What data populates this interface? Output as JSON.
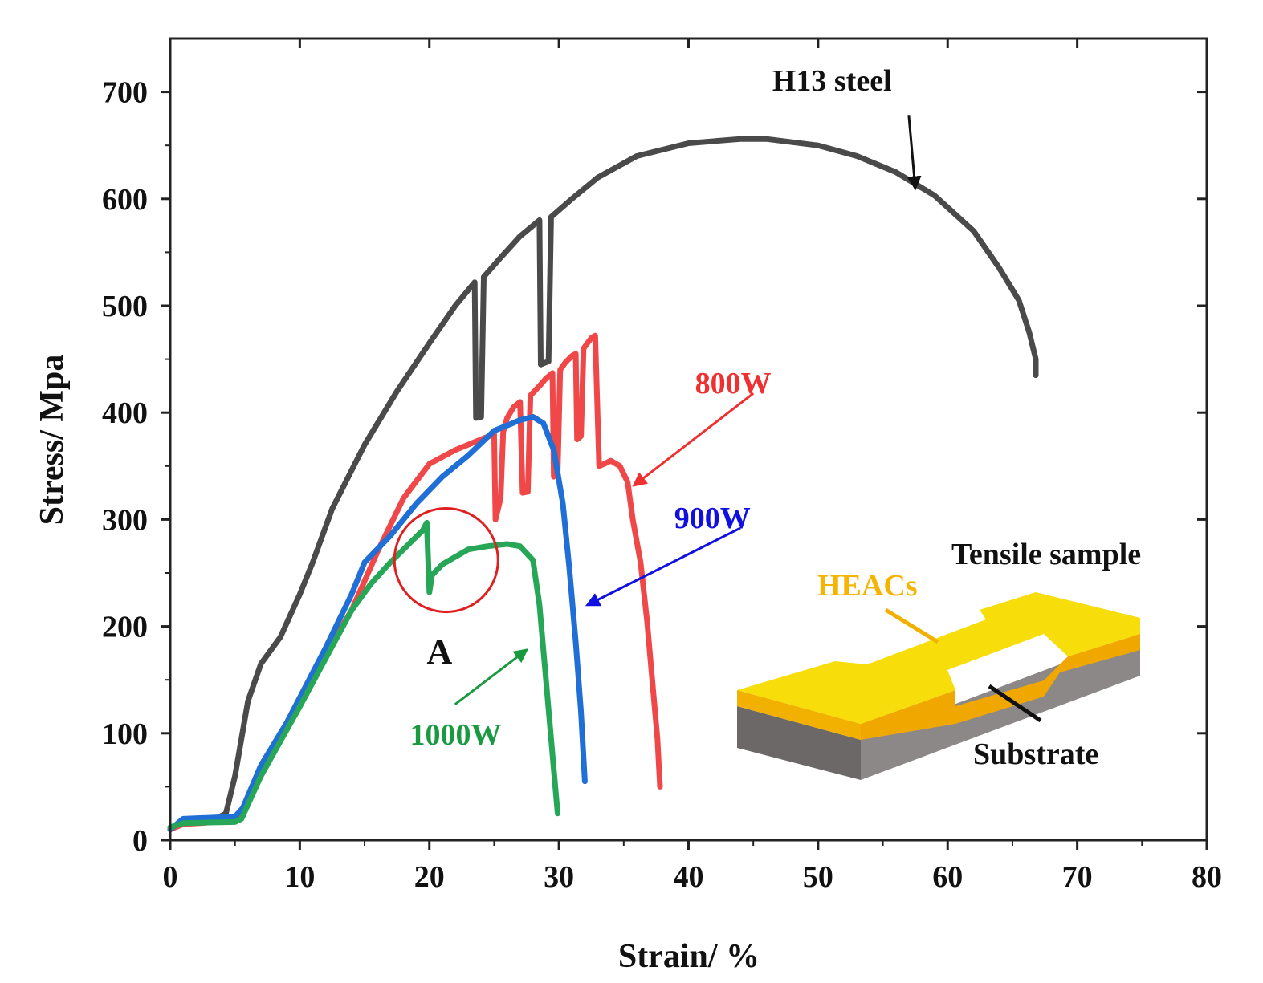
{
  "chart_data": {
    "type": "line",
    "title": "",
    "xlabel": "Strain/ %",
    "ylabel": "Stress/ Mpa",
    "xlim": [
      0,
      80
    ],
    "ylim": [
      0,
      750
    ],
    "x_ticks": [
      0,
      10,
      20,
      30,
      40,
      50,
      60,
      70,
      80
    ],
    "y_ticks": [
      0,
      100,
      200,
      300,
      400,
      500,
      600,
      700
    ],
    "grid": false,
    "series": [
      {
        "name": "H13 steel",
        "color": "#4a4a4a",
        "points": [
          [
            0,
            10
          ],
          [
            1,
            18
          ],
          [
            3.5,
            20
          ],
          [
            4.3,
            25
          ],
          [
            5,
            60
          ],
          [
            6,
            130
          ],
          [
            7,
            165
          ],
          [
            8.5,
            190
          ],
          [
            10,
            230
          ],
          [
            11,
            260
          ],
          [
            12.5,
            310
          ],
          [
            15,
            370
          ],
          [
            17.5,
            420
          ],
          [
            20,
            465
          ],
          [
            22,
            500
          ],
          [
            23.5,
            522
          ],
          [
            23.6,
            395
          ],
          [
            24,
            396
          ],
          [
            24.2,
            527
          ],
          [
            25.5,
            545
          ],
          [
            27,
            565
          ],
          [
            28.5,
            580
          ],
          [
            28.6,
            445
          ],
          [
            29.2,
            448
          ],
          [
            29.4,
            583
          ],
          [
            31,
            600
          ],
          [
            33,
            620
          ],
          [
            36,
            640
          ],
          [
            40,
            652
          ],
          [
            44,
            656
          ],
          [
            46,
            656
          ],
          [
            50,
            650
          ],
          [
            53,
            640
          ],
          [
            56,
            625
          ],
          [
            59,
            603
          ],
          [
            62,
            570
          ],
          [
            64,
            535
          ],
          [
            65.5,
            505
          ],
          [
            66.3,
            475
          ],
          [
            66.8,
            450
          ],
          [
            66.8,
            435
          ]
        ]
      },
      {
        "name": "800W",
        "color": "#f04848",
        "points": [
          [
            0,
            10
          ],
          [
            1,
            15
          ],
          [
            5,
            18
          ],
          [
            5.5,
            25
          ],
          [
            7,
            60
          ],
          [
            10,
            130
          ],
          [
            12,
            175
          ],
          [
            14,
            215
          ],
          [
            16,
            270
          ],
          [
            18,
            320
          ],
          [
            20,
            352
          ],
          [
            22,
            365
          ],
          [
            24,
            375
          ],
          [
            25,
            380
          ],
          [
            25.1,
            300
          ],
          [
            25.5,
            320
          ],
          [
            25.7,
            382
          ],
          [
            26,
            395
          ],
          [
            26.5,
            405
          ],
          [
            27,
            410
          ],
          [
            27.2,
            325
          ],
          [
            27.6,
            326
          ],
          [
            27.8,
            416
          ],
          [
            28.5,
            425
          ],
          [
            29,
            432
          ],
          [
            29.5,
            437
          ],
          [
            29.6,
            340
          ],
          [
            29.9,
            342
          ],
          [
            30.1,
            440
          ],
          [
            30.5,
            447
          ],
          [
            31,
            453
          ],
          [
            31.3,
            455
          ],
          [
            31.4,
            375
          ],
          [
            31.7,
            378
          ],
          [
            31.9,
            460
          ],
          [
            32.5,
            470
          ],
          [
            32.8,
            472
          ],
          [
            33.1,
            350
          ],
          [
            33.5,
            352
          ],
          [
            34,
            355
          ],
          [
            34.7,
            350
          ],
          [
            35.3,
            335
          ],
          [
            35.7,
            300
          ],
          [
            36.3,
            260
          ],
          [
            36.8,
            205
          ],
          [
            37.2,
            150
          ],
          [
            37.6,
            95
          ],
          [
            37.8,
            50
          ]
        ]
      },
      {
        "name": "900W",
        "color": "#1f6fd6",
        "points": [
          [
            0,
            10
          ],
          [
            1,
            20
          ],
          [
            5,
            22
          ],
          [
            5.6,
            30
          ],
          [
            7,
            70
          ],
          [
            9,
            110
          ],
          [
            12,
            180
          ],
          [
            14,
            230
          ],
          [
            15,
            260
          ],
          [
            17,
            285
          ],
          [
            19,
            315
          ],
          [
            21,
            340
          ],
          [
            23,
            360
          ],
          [
            25,
            383
          ],
          [
            26,
            388
          ],
          [
            27,
            393
          ],
          [
            28,
            396
          ],
          [
            28.8,
            390
          ],
          [
            29.6,
            365
          ],
          [
            30.3,
            315
          ],
          [
            30.8,
            255
          ],
          [
            31.3,
            185
          ],
          [
            31.7,
            120
          ],
          [
            32,
            55
          ]
        ]
      },
      {
        "name": "1000W",
        "color": "#27a658",
        "points": [
          [
            0,
            12
          ],
          [
            1,
            16
          ],
          [
            5,
            17
          ],
          [
            5.5,
            20
          ],
          [
            7,
            60
          ],
          [
            10,
            125
          ],
          [
            12,
            170
          ],
          [
            14,
            215
          ],
          [
            15.5,
            240
          ],
          [
            17,
            260
          ],
          [
            18.5,
            278
          ],
          [
            19.5,
            290
          ],
          [
            19.8,
            297
          ],
          [
            20,
            232
          ],
          [
            20.2,
            248
          ],
          [
            21,
            258
          ],
          [
            22,
            265
          ],
          [
            23,
            272
          ],
          [
            24.5,
            275
          ],
          [
            26,
            277
          ],
          [
            27,
            275
          ],
          [
            28,
            262
          ],
          [
            28.5,
            220
          ],
          [
            29,
            150
          ],
          [
            29.5,
            80
          ],
          [
            29.9,
            25
          ]
        ]
      }
    ],
    "annotations": [
      {
        "text": "H13 steel",
        "color": "#111111",
        "at": [
          57,
          686
        ],
        "arrow_to": [
          57.5,
          610
        ]
      },
      {
        "text": "800W",
        "color": "#f03030",
        "at": [
          45,
          418
        ],
        "arrow_to": [
          35.8,
          332
        ]
      },
      {
        "text": "900W",
        "color": "#1010e0",
        "at": [
          44,
          292
        ],
        "arrow_to": [
          32.2,
          220
        ]
      },
      {
        "text": "1000W",
        "color": "#1a9a40",
        "at": [
          19.5,
          97
        ],
        "arrow_to": [
          27.5,
          178
        ]
      },
      {
        "text": "A",
        "color": "#111111",
        "at": [
          20.7,
          173
        ]
      }
    ],
    "highlight_circle": {
      "center": [
        21.3,
        262
      ],
      "radius_x": 4.0,
      "color": "#e02020"
    }
  },
  "inset": {
    "title": "Tensile sample",
    "coating_label": "HEACs",
    "substrate_label": "Substrate",
    "colors": {
      "coating_top": "#f7dd0a",
      "coating_side": "#f2b100",
      "substrate_front": "#6c6868",
      "substrate_side": "#8c8888"
    }
  }
}
